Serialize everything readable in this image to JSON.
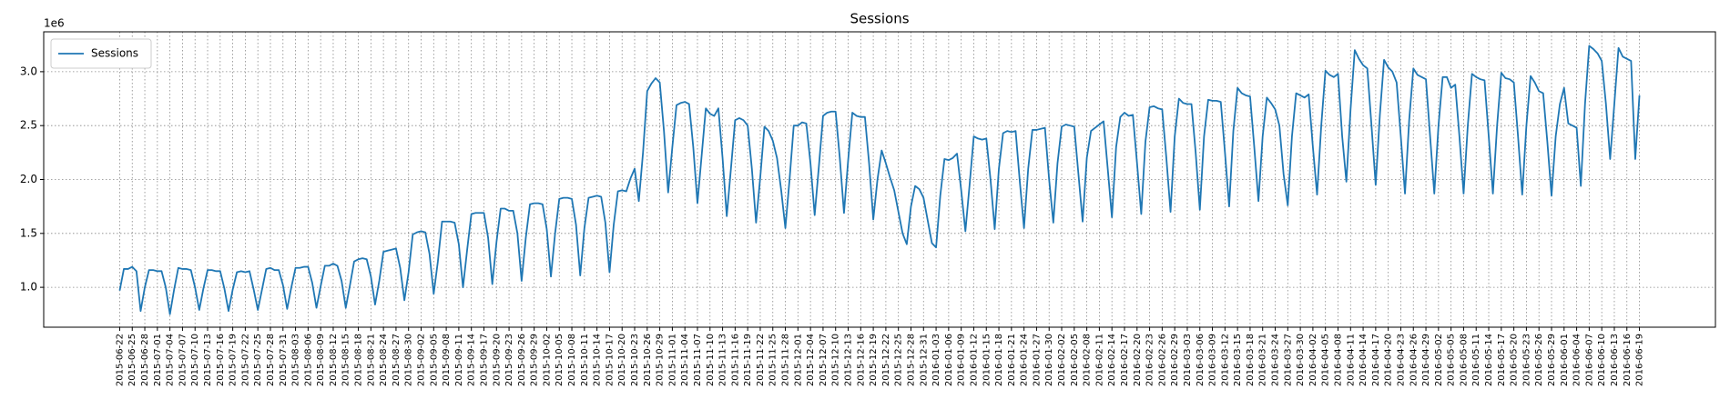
{
  "chart_data": {
    "type": "line",
    "title": "Sessions",
    "y_offset_label": "1e6",
    "grid": true,
    "legend": "upper left",
    "x": [
      "2015-06-22",
      "2015-06-23",
      "2015-06-24",
      "2015-06-25",
      "2015-06-26",
      "2015-06-27",
      "2015-06-28",
      "2015-06-29",
      "2015-06-30",
      "2015-07-01",
      "2015-07-02",
      "2015-07-03",
      "2015-07-04",
      "2015-07-05",
      "2015-07-06",
      "2015-07-07",
      "2015-07-08",
      "2015-07-09",
      "2015-07-10",
      "2015-07-11",
      "2015-07-12",
      "2015-07-13",
      "2015-07-14",
      "2015-07-15",
      "2015-07-16",
      "2015-07-17",
      "2015-07-18",
      "2015-07-19",
      "2015-07-20",
      "2015-07-21",
      "2015-07-22",
      "2015-07-23",
      "2015-07-24",
      "2015-07-25",
      "2015-07-26",
      "2015-07-27",
      "2015-07-28",
      "2015-07-29",
      "2015-07-30",
      "2015-07-31",
      "2015-08-01",
      "2015-08-02",
      "2015-08-03",
      "2015-08-04",
      "2015-08-05",
      "2015-08-06",
      "2015-08-07",
      "2015-08-08",
      "2015-08-09",
      "2015-08-10",
      "2015-08-11",
      "2015-08-12",
      "2015-08-13",
      "2015-08-14",
      "2015-08-15",
      "2015-08-16",
      "2015-08-17",
      "2015-08-18",
      "2015-08-19",
      "2015-08-20",
      "2015-08-21",
      "2015-08-22",
      "2015-08-23",
      "2015-08-24",
      "2015-08-25",
      "2015-08-26",
      "2015-08-27",
      "2015-08-28",
      "2015-08-29",
      "2015-08-30",
      "2015-08-31",
      "2015-09-01",
      "2015-09-02",
      "2015-09-03",
      "2015-09-04",
      "2015-09-05",
      "2015-09-06",
      "2015-09-07",
      "2015-09-08",
      "2015-09-09",
      "2015-09-10",
      "2015-09-11",
      "2015-09-12",
      "2015-09-13",
      "2015-09-14",
      "2015-09-15",
      "2015-09-16",
      "2015-09-17",
      "2015-09-18",
      "2015-09-19",
      "2015-09-20",
      "2015-09-21",
      "2015-09-22",
      "2015-09-23",
      "2015-09-24",
      "2015-09-25",
      "2015-09-26",
      "2015-09-27",
      "2015-09-28",
      "2015-09-29",
      "2015-09-30",
      "2015-10-01",
      "2015-10-02",
      "2015-10-03",
      "2015-10-04",
      "2015-10-05",
      "2015-10-06",
      "2015-10-07",
      "2015-10-08",
      "2015-10-09",
      "2015-10-10",
      "2015-10-11",
      "2015-10-12",
      "2015-10-13",
      "2015-10-14",
      "2015-10-15",
      "2015-10-16",
      "2015-10-17",
      "2015-10-18",
      "2015-10-19",
      "2015-10-20",
      "2015-10-21",
      "2015-10-22",
      "2015-10-23",
      "2015-10-24",
      "2015-10-25",
      "2015-10-26",
      "2015-10-27",
      "2015-10-28",
      "2015-10-29",
      "2015-10-30",
      "2015-10-31",
      "2015-11-01",
      "2015-11-02",
      "2015-11-03",
      "2015-11-04",
      "2015-11-05",
      "2015-11-06",
      "2015-11-07",
      "2015-11-08",
      "2015-11-09",
      "2015-11-10",
      "2015-11-11",
      "2015-11-12",
      "2015-11-13",
      "2015-11-14",
      "2015-11-15",
      "2015-11-16",
      "2015-11-17",
      "2015-11-18",
      "2015-11-19",
      "2015-11-20",
      "2015-11-21",
      "2015-11-22",
      "2015-11-23",
      "2015-11-24",
      "2015-11-25",
      "2015-11-26",
      "2015-11-27",
      "2015-11-28",
      "2015-11-29",
      "2015-11-30",
      "2015-12-01",
      "2015-12-02",
      "2015-12-03",
      "2015-12-04",
      "2015-12-05",
      "2015-12-06",
      "2015-12-07",
      "2015-12-08",
      "2015-12-09",
      "2015-12-10",
      "2015-12-11",
      "2015-12-12",
      "2015-12-13",
      "2015-12-14",
      "2015-12-15",
      "2015-12-16",
      "2015-12-17",
      "2015-12-18",
      "2015-12-19",
      "2015-12-20",
      "2015-12-21",
      "2015-12-22",
      "2015-12-23",
      "2015-12-24",
      "2015-12-25",
      "2015-12-26",
      "2015-12-27",
      "2015-12-28",
      "2015-12-29",
      "2015-12-30",
      "2015-12-31",
      "2016-01-01",
      "2016-01-02",
      "2016-01-03",
      "2016-01-04",
      "2016-01-05",
      "2016-01-06",
      "2016-01-07",
      "2016-01-08",
      "2016-01-09",
      "2016-01-10",
      "2016-01-11",
      "2016-01-12",
      "2016-01-13",
      "2016-01-14",
      "2016-01-15",
      "2016-01-16",
      "2016-01-17",
      "2016-01-18",
      "2016-01-19",
      "2016-01-20",
      "2016-01-21",
      "2016-01-22",
      "2016-01-23",
      "2016-01-24",
      "2016-01-25",
      "2016-01-26",
      "2016-01-27",
      "2016-01-28",
      "2016-01-29",
      "2016-01-30",
      "2016-01-31",
      "2016-02-01",
      "2016-02-02",
      "2016-02-03",
      "2016-02-04",
      "2016-02-05",
      "2016-02-06",
      "2016-02-07",
      "2016-02-08",
      "2016-02-09",
      "2016-02-10",
      "2016-02-11",
      "2016-02-12",
      "2016-02-13",
      "2016-02-14",
      "2016-02-15",
      "2016-02-16",
      "2016-02-17",
      "2016-02-18",
      "2016-02-19",
      "2016-02-20",
      "2016-02-21",
      "2016-02-22",
      "2016-02-23",
      "2016-02-24",
      "2016-02-25",
      "2016-02-26",
      "2016-02-27",
      "2016-02-28",
      "2016-02-29",
      "2016-03-01",
      "2016-03-02",
      "2016-03-03",
      "2016-03-04",
      "2016-03-05",
      "2016-03-06",
      "2016-03-07",
      "2016-03-08",
      "2016-03-09",
      "2016-03-10",
      "2016-03-11",
      "2016-03-12",
      "2016-03-13",
      "2016-03-14",
      "2016-03-15",
      "2016-03-16",
      "2016-03-17",
      "2016-03-18",
      "2016-03-19",
      "2016-03-20",
      "2016-03-21",
      "2016-03-22",
      "2016-03-23",
      "2016-03-24",
      "2016-03-25",
      "2016-03-26",
      "2016-03-27",
      "2016-03-28",
      "2016-03-29",
      "2016-03-30",
      "2016-03-31",
      "2016-04-01",
      "2016-04-02",
      "2016-04-03",
      "2016-04-04",
      "2016-04-05",
      "2016-04-06",
      "2016-04-07",
      "2016-04-08",
      "2016-04-09",
      "2016-04-10",
      "2016-04-11",
      "2016-04-12",
      "2016-04-13",
      "2016-04-14",
      "2016-04-15",
      "2016-04-16",
      "2016-04-17",
      "2016-04-18",
      "2016-04-19",
      "2016-04-20",
      "2016-04-21",
      "2016-04-22",
      "2016-04-23",
      "2016-04-24",
      "2016-04-25",
      "2016-04-26",
      "2016-04-27",
      "2016-04-28",
      "2016-04-29",
      "2016-04-30",
      "2016-05-01",
      "2016-05-02",
      "2016-05-03",
      "2016-05-04",
      "2016-05-05",
      "2016-05-06",
      "2016-05-07",
      "2016-05-08",
      "2016-05-09",
      "2016-05-10",
      "2016-05-11",
      "2016-05-12",
      "2016-05-13",
      "2016-05-14",
      "2016-05-15",
      "2016-05-16",
      "2016-05-17",
      "2016-05-18",
      "2016-05-19",
      "2016-05-20",
      "2016-05-21",
      "2016-05-22",
      "2016-05-23",
      "2016-05-24",
      "2016-05-25",
      "2016-05-26",
      "2016-05-27",
      "2016-05-28",
      "2016-05-29",
      "2016-05-30",
      "2016-05-31",
      "2016-06-01",
      "2016-06-02",
      "2016-06-03",
      "2016-06-04",
      "2016-06-05",
      "2016-06-06",
      "2016-06-07",
      "2016-06-08",
      "2016-06-09",
      "2016-06-10",
      "2016-06-11",
      "2016-06-12",
      "2016-06-13",
      "2016-06-14",
      "2016-06-15",
      "2016-06-16",
      "2016-06-17",
      "2016-06-18",
      "2016-06-19"
    ],
    "series": [
      {
        "name": "Sessions",
        "color": "#1f77b4",
        "values": [
          0.97,
          1.17,
          1.17,
          1.19,
          1.15,
          0.78,
          1.0,
          1.16,
          1.16,
          1.15,
          1.15,
          1.0,
          0.75,
          0.98,
          1.18,
          1.17,
          1.17,
          1.16,
          1.0,
          0.79,
          0.99,
          1.16,
          1.16,
          1.15,
          1.15,
          0.99,
          0.78,
          0.98,
          1.14,
          1.15,
          1.14,
          1.15,
          0.98,
          0.79,
          0.98,
          1.17,
          1.18,
          1.16,
          1.16,
          1.02,
          0.8,
          1.0,
          1.18,
          1.18,
          1.19,
          1.19,
          1.04,
          0.81,
          1.01,
          1.2,
          1.2,
          1.22,
          1.2,
          1.06,
          0.81,
          1.02,
          1.24,
          1.26,
          1.27,
          1.26,
          1.1,
          0.84,
          1.06,
          1.33,
          1.34,
          1.35,
          1.36,
          1.18,
          0.88,
          1.14,
          1.49,
          1.51,
          1.52,
          1.51,
          1.31,
          0.94,
          1.24,
          1.61,
          1.61,
          1.61,
          1.6,
          1.4,
          1.0,
          1.35,
          1.68,
          1.69,
          1.69,
          1.69,
          1.46,
          1.03,
          1.42,
          1.73,
          1.73,
          1.71,
          1.71,
          1.5,
          1.06,
          1.46,
          1.77,
          1.78,
          1.78,
          1.77,
          1.54,
          1.1,
          1.5,
          1.82,
          1.83,
          1.83,
          1.82,
          1.58,
          1.11,
          1.55,
          1.83,
          1.84,
          1.85,
          1.84,
          1.6,
          1.14,
          1.58,
          1.89,
          1.9,
          1.89,
          2.01,
          2.1,
          1.8,
          2.25,
          2.82,
          2.89,
          2.94,
          2.9,
          2.45,
          1.88,
          2.3,
          2.69,
          2.71,
          2.72,
          2.7,
          2.3,
          1.78,
          2.22,
          2.66,
          2.61,
          2.59,
          2.66,
          2.2,
          1.66,
          2.1,
          2.55,
          2.57,
          2.55,
          2.5,
          2.1,
          1.6,
          2.02,
          2.49,
          2.45,
          2.36,
          2.2,
          1.9,
          1.55,
          2.0,
          2.5,
          2.5,
          2.53,
          2.52,
          2.15,
          1.67,
          2.12,
          2.59,
          2.62,
          2.63,
          2.63,
          2.2,
          1.69,
          2.18,
          2.62,
          2.59,
          2.58,
          2.58,
          2.15,
          1.63,
          2.0,
          2.27,
          2.15,
          2.02,
          1.9,
          1.7,
          1.5,
          1.4,
          1.75,
          1.94,
          1.91,
          1.83,
          1.62,
          1.41,
          1.37,
          1.85,
          2.19,
          2.18,
          2.2,
          2.24,
          1.9,
          1.52,
          1.95,
          2.4,
          2.38,
          2.37,
          2.38,
          2.0,
          1.54,
          2.1,
          2.43,
          2.45,
          2.44,
          2.45,
          1.98,
          1.55,
          2.1,
          2.46,
          2.46,
          2.47,
          2.48,
          2.0,
          1.6,
          2.15,
          2.49,
          2.51,
          2.5,
          2.49,
          2.05,
          1.61,
          2.2,
          2.45,
          2.48,
          2.51,
          2.54,
          2.1,
          1.65,
          2.3,
          2.58,
          2.62,
          2.59,
          2.6,
          2.15,
          1.68,
          2.35,
          2.67,
          2.68,
          2.66,
          2.65,
          2.2,
          1.7,
          2.4,
          2.75,
          2.71,
          2.7,
          2.7,
          2.25,
          1.72,
          2.4,
          2.74,
          2.73,
          2.73,
          2.72,
          2.25,
          1.75,
          2.45,
          2.85,
          2.8,
          2.78,
          2.77,
          2.3,
          1.8,
          2.4,
          2.76,
          2.71,
          2.65,
          2.5,
          2.05,
          1.76,
          2.4,
          2.8,
          2.78,
          2.76,
          2.79,
          2.3,
          1.86,
          2.5,
          3.01,
          2.97,
          2.95,
          2.98,
          2.4,
          1.98,
          2.65,
          3.2,
          3.12,
          3.06,
          3.03,
          2.5,
          1.95,
          2.6,
          3.11,
          3.04,
          3.0,
          2.9,
          2.4,
          1.87,
          2.55,
          3.03,
          2.97,
          2.95,
          2.93,
          2.4,
          1.87,
          2.5,
          2.95,
          2.95,
          2.85,
          2.88,
          2.4,
          1.87,
          2.5,
          2.98,
          2.95,
          2.93,
          2.92,
          2.4,
          1.87,
          2.5,
          2.99,
          2.94,
          2.93,
          2.9,
          2.4,
          1.86,
          2.5,
          2.96,
          2.9,
          2.82,
          2.8,
          2.35,
          1.85,
          2.4,
          2.7,
          2.85,
          2.52,
          2.5,
          2.48,
          1.94,
          2.7,
          3.24,
          3.21,
          3.17,
          3.1,
          2.7,
          2.19,
          2.7,
          3.22,
          3.14,
          3.12,
          3.1,
          2.19,
          2.78
        ]
      }
    ],
    "ylim": [
      0.63,
      3.37
    ],
    "yticks": [
      {
        "value": 1,
        "label": "1.0"
      },
      1.5,
      {
        "value": 2,
        "label": "2.0"
      },
      2.5,
      {
        "value": 3,
        "label": "3.0"
      }
    ],
    "xticks": [
      "2015-06-22",
      "2015-06-25",
      "2015-06-28",
      "2015-07-01",
      "2015-07-04",
      "2015-07-07",
      "2015-07-10",
      "2015-07-13",
      "2015-07-16",
      "2015-07-19",
      "2015-07-22",
      "2015-07-25",
      "2015-07-28",
      "2015-07-31",
      "2015-08-03",
      "2015-08-06",
      "2015-08-09",
      "2015-08-12",
      "2015-08-15",
      "2015-08-18",
      "2015-08-21",
      "2015-08-24",
      "2015-08-27",
      "2015-08-30",
      "2015-09-02",
      "2015-09-05",
      "2015-09-08",
      "2015-09-11",
      "2015-09-14",
      "2015-09-17",
      "2015-09-20",
      "2015-09-23",
      "2015-09-26",
      "2015-09-29",
      "2015-10-02",
      "2015-10-05",
      "2015-10-08",
      "2015-10-11",
      "2015-10-14",
      "2015-10-17",
      "2015-10-20",
      "2015-10-23",
      "2015-10-26",
      "2015-10-29",
      "2015-11-01",
      "2015-11-04",
      "2015-11-07",
      "2015-11-10",
      "2015-11-13",
      "2015-11-16",
      "2015-11-19",
      "2015-11-22",
      "2015-11-25",
      "2015-11-28",
      "2015-12-01",
      "2015-12-04",
      "2015-12-07",
      "2015-12-10",
      "2015-12-13",
      "2015-12-16",
      "2015-12-19",
      "2015-12-22",
      "2015-12-25",
      "2015-12-28",
      "2015-12-31",
      "2016-01-03",
      "2016-01-06",
      "2016-01-09",
      "2016-01-12",
      "2016-01-15",
      "2016-01-18",
      "2016-01-21",
      "2016-01-24",
      "2016-01-27",
      "2016-01-30",
      "2016-02-02",
      "2016-02-05",
      "2016-02-08",
      "2016-02-11",
      "2016-02-14",
      "2016-02-17",
      "2016-02-20",
      "2016-02-23",
      "2016-02-26",
      "2016-02-29",
      "2016-03-03",
      "2016-03-06",
      "2016-03-09",
      "2016-03-12",
      "2016-03-15",
      "2016-03-18",
      "2016-03-21",
      "2016-03-24",
      "2016-03-27",
      "2016-03-30",
      "2016-04-02",
      "2016-04-05",
      "2016-04-08",
      "2016-04-11",
      "2016-04-14",
      "2016-04-17",
      "2016-04-20",
      "2016-04-23",
      "2016-04-26",
      "2016-04-29",
      "2016-05-02",
      "2016-05-05",
      "2016-05-08",
      "2016-05-11",
      "2016-05-14",
      "2016-05-17",
      "2016-05-20",
      "2016-05-23",
      "2016-05-26",
      "2016-05-29",
      "2016-06-01",
      "2016-06-04",
      "2016-06-07",
      "2016-06-10",
      "2016-06-13",
      "2016-06-16",
      "2016-06-19"
    ]
  }
}
